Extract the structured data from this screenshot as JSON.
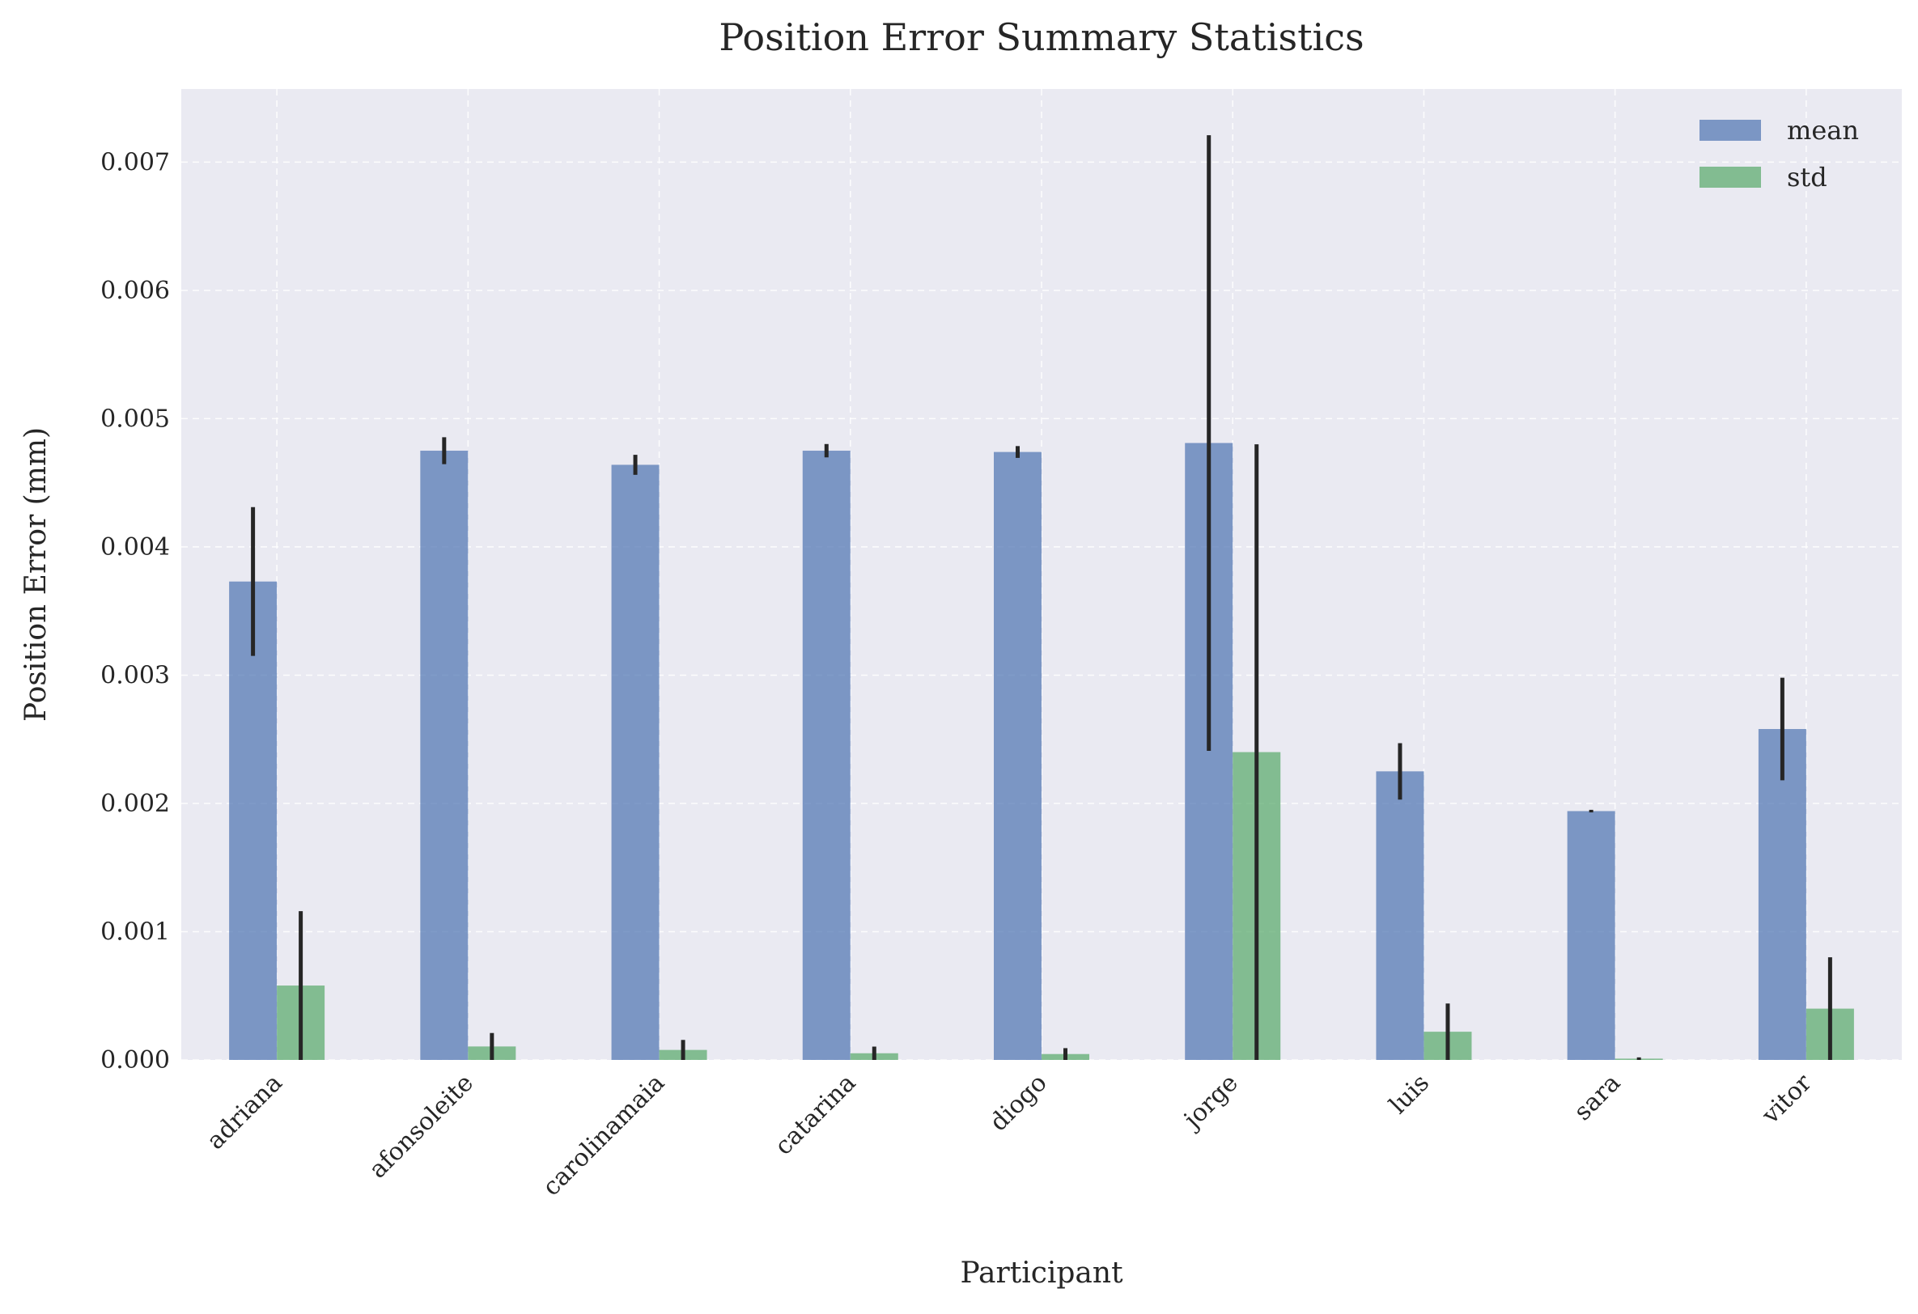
{
  "chart_data": {
    "type": "bar",
    "title": "Position Error Summary Statistics",
    "xlabel": "Participant",
    "ylabel": "Position Error (mm)",
    "categories": [
      "adriana",
      "afonsoleite",
      "carolinamaia",
      "catarina",
      "diogo",
      "jorge",
      "luis",
      "sara",
      "vitor"
    ],
    "series": [
      {
        "name": "mean",
        "color": "#4c72b0",
        "values": [
          0.00373,
          0.00475,
          0.00464,
          0.00475,
          0.00474,
          0.00481,
          0.00225,
          0.00194,
          0.00258
        ],
        "errors": [
          0.00058,
          0.000105,
          7.8e-05,
          5.2e-05,
          4.6e-05,
          0.0024,
          0.00022,
          1e-05,
          0.0004
        ]
      },
      {
        "name": "std",
        "color": "#55a868",
        "values": [
          0.00058,
          0.000105,
          7.8e-05,
          5.2e-05,
          4.6e-05,
          0.0024,
          0.00022,
          1e-05,
          0.0004
        ],
        "errors": [
          0.00058,
          0.000105,
          7.8e-05,
          5.2e-05,
          4.6e-05,
          0.0024,
          0.00022,
          1e-05,
          0.0004
        ]
      }
    ],
    "ylim": [
      0,
      0.00757
    ],
    "yticks": [
      0.0,
      0.001,
      0.002,
      0.003,
      0.004,
      0.005,
      0.006,
      0.007
    ],
    "ytick_labels": [
      "0.000",
      "0.001",
      "0.002",
      "0.003",
      "0.004",
      "0.005",
      "0.006",
      "0.007"
    ],
    "grid": true,
    "legend_position": "top-right",
    "colors": {
      "plot_background": "#eaeaf2",
      "grid": "#ffffff",
      "error_bar": "#262626"
    }
  }
}
